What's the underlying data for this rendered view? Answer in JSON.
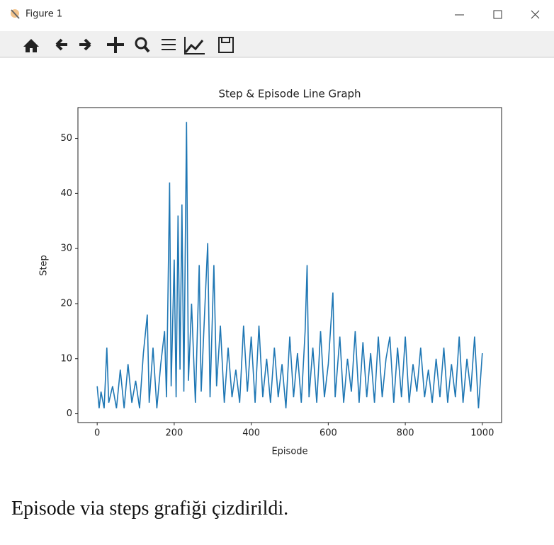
{
  "window": {
    "title": "Figure 1"
  },
  "chart_data": {
    "type": "line",
    "title": "Step & Episode Line Graph",
    "x_label": "Episode",
    "y_label": "Step",
    "x": [
      0,
      5,
      10,
      18,
      25,
      30,
      40,
      50,
      60,
      70,
      80,
      90,
      100,
      110,
      120,
      130,
      135,
      145,
      155,
      165,
      175,
      180,
      188,
      192,
      200,
      205,
      210,
      215,
      220,
      225,
      232,
      237,
      245,
      255,
      265,
      270,
      280,
      287,
      293,
      303,
      310,
      320,
      330,
      340,
      350,
      360,
      370,
      380,
      390,
      400,
      410,
      420,
      430,
      440,
      450,
      460,
      470,
      480,
      490,
      500,
      510,
      520,
      530,
      540,
      545,
      550,
      560,
      570,
      580,
      590,
      600,
      612,
      618,
      630,
      640,
      650,
      660,
      670,
      680,
      690,
      700,
      710,
      720,
      730,
      740,
      750,
      760,
      770,
      780,
      790,
      800,
      810,
      820,
      830,
      840,
      850,
      860,
      870,
      880,
      890,
      900,
      910,
      920,
      930,
      940,
      950,
      960,
      970,
      980,
      990,
      1000
    ],
    "series": [
      {
        "name": "Step",
        "color": "#1f77b4",
        "values": [
          5,
          1,
          4,
          1,
          12,
          2,
          5,
          1,
          8,
          1,
          9,
          2,
          6,
          1,
          11,
          18,
          2,
          12,
          1,
          9,
          15,
          3,
          42,
          5,
          28,
          3,
          36,
          8,
          38,
          4,
          53,
          6,
          20,
          2,
          27,
          4,
          20,
          31,
          3,
          27,
          5,
          16,
          2,
          12,
          3,
          8,
          2,
          16,
          4,
          14,
          2,
          16,
          3,
          10,
          2,
          12,
          3,
          9,
          1,
          14,
          3,
          11,
          2,
          15,
          27,
          3,
          12,
          2,
          15,
          3,
          9,
          22,
          3,
          14,
          2,
          10,
          4,
          15,
          2,
          13,
          3,
          11,
          2,
          14,
          3,
          10,
          14,
          2,
          12,
          3,
          14,
          2,
          9,
          4,
          12,
          3,
          8,
          2,
          10,
          3,
          12,
          2,
          9,
          3,
          14,
          2,
          10,
          4,
          14,
          1,
          11
        ]
      }
    ],
    "xlim": [
      -50,
      1050
    ],
    "ylim": [
      -1.6,
      55.6
    ],
    "xticks": [
      0,
      200,
      400,
      600,
      800,
      1000
    ],
    "yticks": [
      0,
      10,
      20,
      30,
      40,
      50
    ]
  },
  "caption": "Episode via steps   grafiği çizdirildi."
}
